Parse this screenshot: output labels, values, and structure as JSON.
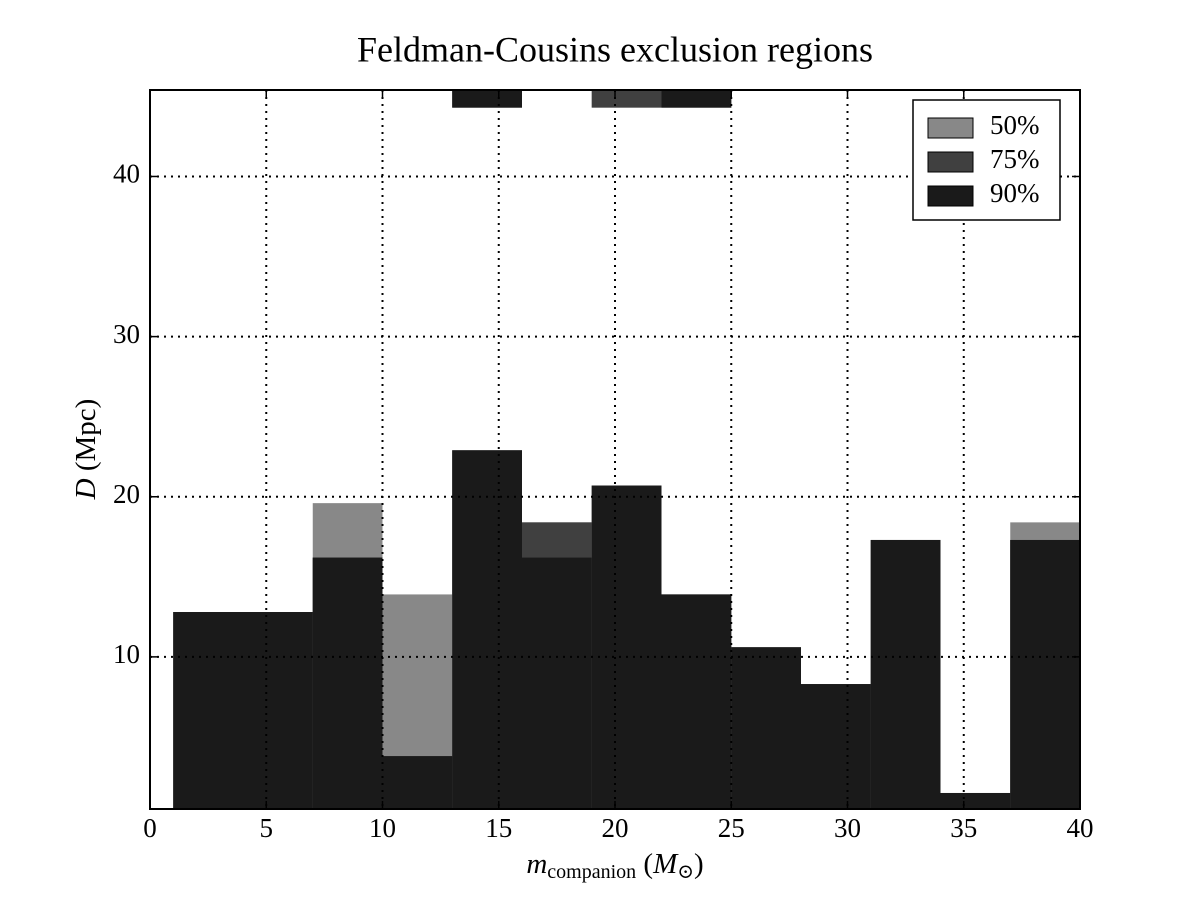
{
  "chart_data": {
    "type": "histogram",
    "title": "Feldman-Cousins exclusion regions",
    "xlabel": [
      "m",
      "companion",
      " (",
      "M",
      "⊙",
      ")"
    ],
    "ylabel": [
      "D",
      " (Mpc)"
    ],
    "bins": [
      1,
      4,
      7,
      10,
      13,
      16,
      19,
      22,
      25,
      28,
      31,
      34,
      37,
      40
    ],
    "series": [
      {
        "name": "50%",
        "color": "#888888",
        "values": [
          12.8,
          12.8,
          19.6,
          13.9,
          22.9,
          18.4,
          20.7,
          13.9,
          10.6,
          8.3,
          17.3,
          1.5,
          18.4
        ],
        "upper_values": [
          null,
          null,
          null,
          null,
          44.3,
          null,
          44.3,
          44.3,
          null,
          null,
          null,
          null,
          null
        ]
      },
      {
        "name": "75%",
        "color": "#404040",
        "values": [
          12.8,
          12.8,
          16.2,
          3.8,
          22.9,
          18.4,
          20.7,
          13.9,
          10.6,
          8.3,
          17.3,
          1.5,
          17.3
        ],
        "upper_values": [
          null,
          null,
          null,
          null,
          44.3,
          null,
          44.3,
          44.3,
          null,
          null,
          null,
          null,
          null
        ]
      },
      {
        "name": "90%",
        "color": "#1a1a1a",
        "values": [
          12.8,
          12.8,
          16.2,
          3.8,
          22.9,
          16.2,
          20.7,
          13.9,
          10.6,
          8.3,
          17.3,
          1.5,
          17.3
        ],
        "upper_values": [
          null,
          null,
          null,
          null,
          44.3,
          null,
          null,
          44.3,
          null,
          null,
          null,
          null,
          null
        ]
      }
    ],
    "xlim": [
      0,
      40
    ],
    "ylim": [
      0.5,
      45.4
    ],
    "xticks": [
      0,
      5,
      10,
      15,
      20,
      25,
      30,
      35,
      40
    ],
    "yticks": [
      10,
      20,
      30,
      40
    ],
    "grid": true,
    "legend": "upper right"
  }
}
